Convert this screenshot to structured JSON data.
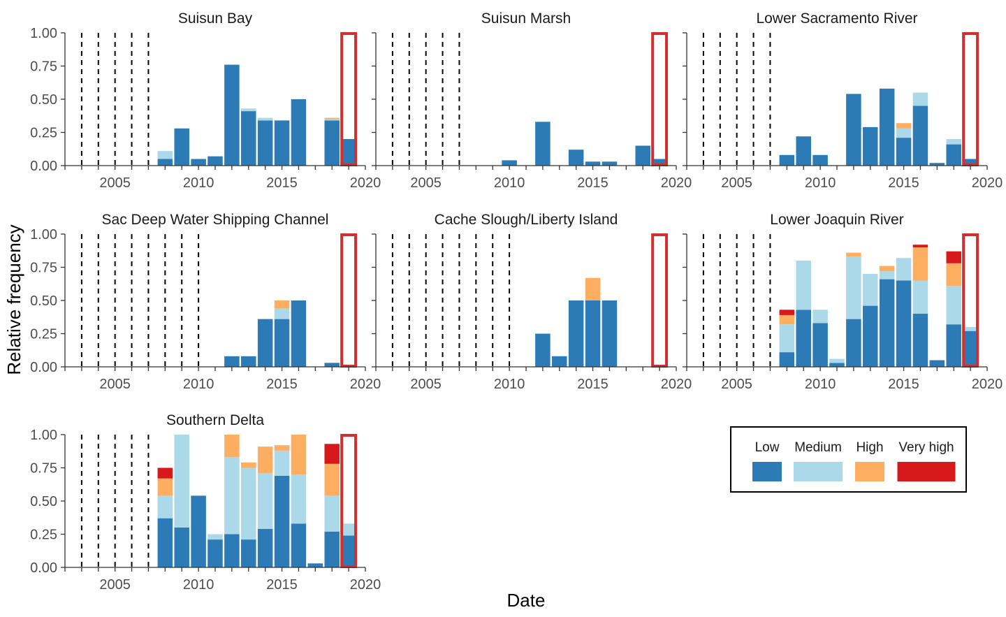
{
  "chart_data": {
    "type": "bar",
    "stacked": true,
    "xlabel": "Date",
    "ylabel": "Relative frequency",
    "xlim": [
      2002,
      2020
    ],
    "ylim": [
      0,
      1
    ],
    "x_ticks": [
      "2005",
      "2010",
      "2015",
      "2020"
    ],
    "y_ticks": [
      "0.00",
      "0.25",
      "0.50",
      "0.75",
      "1.00"
    ],
    "legend": {
      "position": "bottom-right",
      "entries": [
        {
          "name": "Low",
          "color": "#2c7bb6"
        },
        {
          "name": "Medium",
          "color": "#abd9e9"
        },
        {
          "name": "High",
          "color": "#fdae61"
        },
        {
          "name": "Very high",
          "color": "#d7191c"
        }
      ]
    },
    "highlight_year": 2019,
    "highlight_color": "#d32f2f",
    "grid": false,
    "panels": [
      {
        "title": "Suisun Bay",
        "dashed_years": [
          2003,
          2004,
          2005,
          2006,
          2007
        ],
        "bars": [
          {
            "year": 2008,
            "values": [
              0.05,
              0.06,
              0,
              0
            ]
          },
          {
            "year": 2009,
            "values": [
              0.28,
              0,
              0,
              0
            ]
          },
          {
            "year": 2010,
            "values": [
              0.05,
              0,
              0,
              0
            ]
          },
          {
            "year": 2011,
            "values": [
              0.07,
              0,
              0,
              0
            ]
          },
          {
            "year": 2012,
            "values": [
              0.76,
              0,
              0,
              0
            ]
          },
          {
            "year": 2013,
            "values": [
              0.41,
              0.02,
              0,
              0
            ]
          },
          {
            "year": 2014,
            "values": [
              0.34,
              0.02,
              0,
              0
            ]
          },
          {
            "year": 2015,
            "values": [
              0.34,
              0,
              0,
              0
            ]
          },
          {
            "year": 2016,
            "values": [
              0.5,
              0,
              0,
              0
            ]
          },
          {
            "year": 2018,
            "values": [
              0.34,
              0.01,
              0.01,
              0
            ]
          },
          {
            "year": 2019,
            "values": [
              0.2,
              0,
              0,
              0
            ]
          }
        ]
      },
      {
        "title": "Suisun Marsh",
        "dashed_years": [
          2003,
          2004,
          2005,
          2006,
          2007
        ],
        "bars": [
          {
            "year": 2010,
            "values": [
              0.04,
              0,
              0,
              0
            ]
          },
          {
            "year": 2012,
            "values": [
              0.33,
              0,
              0,
              0
            ]
          },
          {
            "year": 2014,
            "values": [
              0.12,
              0,
              0,
              0
            ]
          },
          {
            "year": 2015,
            "values": [
              0.03,
              0,
              0,
              0
            ]
          },
          {
            "year": 2016,
            "values": [
              0.03,
              0,
              0,
              0
            ]
          },
          {
            "year": 2018,
            "values": [
              0.15,
              0,
              0,
              0
            ]
          },
          {
            "year": 2019,
            "values": [
              0.05,
              0,
              0,
              0
            ]
          }
        ]
      },
      {
        "title": "Lower Sacramento River",
        "dashed_years": [
          2003,
          2004,
          2005,
          2006,
          2007
        ],
        "bars": [
          {
            "year": 2008,
            "values": [
              0.08,
              0,
              0,
              0
            ]
          },
          {
            "year": 2009,
            "values": [
              0.22,
              0,
              0,
              0
            ]
          },
          {
            "year": 2010,
            "values": [
              0.08,
              0,
              0,
              0
            ]
          },
          {
            "year": 2012,
            "values": [
              0.54,
              0,
              0,
              0
            ]
          },
          {
            "year": 2013,
            "values": [
              0.29,
              0,
              0,
              0
            ]
          },
          {
            "year": 2014,
            "values": [
              0.58,
              0,
              0,
              0
            ]
          },
          {
            "year": 2015,
            "values": [
              0.21,
              0.07,
              0.04,
              0
            ]
          },
          {
            "year": 2016,
            "values": [
              0.45,
              0.1,
              0,
              0
            ]
          },
          {
            "year": 2017,
            "values": [
              0.02,
              0,
              0,
              0
            ]
          },
          {
            "year": 2018,
            "values": [
              0.16,
              0.04,
              0,
              0
            ]
          },
          {
            "year": 2019,
            "values": [
              0.05,
              0,
              0,
              0
            ]
          }
        ]
      },
      {
        "title": "Sac Deep Water Shipping Channel",
        "dashed_years": [
          2003,
          2004,
          2005,
          2006,
          2007,
          2008,
          2009,
          2010
        ],
        "bars": [
          {
            "year": 2012,
            "values": [
              0.08,
              0,
              0,
              0
            ]
          },
          {
            "year": 2013,
            "values": [
              0.08,
              0,
              0,
              0
            ]
          },
          {
            "year": 2014,
            "values": [
              0.36,
              0,
              0,
              0
            ]
          },
          {
            "year": 2015,
            "values": [
              0.36,
              0.08,
              0.06,
              0
            ]
          },
          {
            "year": 2016,
            "values": [
              0.5,
              0,
              0,
              0
            ]
          },
          {
            "year": 2018,
            "values": [
              0.03,
              0,
              0,
              0
            ]
          }
        ]
      },
      {
        "title": "Cache Slough/Liberty Island",
        "dashed_years": [
          2003,
          2004,
          2005,
          2006,
          2007,
          2008,
          2009,
          2010
        ],
        "bars": [
          {
            "year": 2012,
            "values": [
              0.25,
              0,
              0,
              0
            ]
          },
          {
            "year": 2013,
            "values": [
              0.08,
              0,
              0,
              0
            ]
          },
          {
            "year": 2014,
            "values": [
              0.5,
              0,
              0,
              0
            ]
          },
          {
            "year": 2015,
            "values": [
              0.5,
              0,
              0.17,
              0
            ]
          },
          {
            "year": 2016,
            "values": [
              0.5,
              0,
              0,
              0
            ]
          }
        ]
      },
      {
        "title": "Lower Joaquin River",
        "dashed_years": [
          2003,
          2004,
          2005,
          2006,
          2007
        ],
        "bars": [
          {
            "year": 2008,
            "values": [
              0.11,
              0.21,
              0.07,
              0.04
            ]
          },
          {
            "year": 2009,
            "values": [
              0.43,
              0.37,
              0,
              0
            ]
          },
          {
            "year": 2010,
            "values": [
              0.33,
              0.1,
              0,
              0
            ]
          },
          {
            "year": 2011,
            "values": [
              0.03,
              0.03,
              0,
              0
            ]
          },
          {
            "year": 2012,
            "values": [
              0.36,
              0.47,
              0.03,
              0
            ]
          },
          {
            "year": 2013,
            "values": [
              0.46,
              0.24,
              0,
              0
            ]
          },
          {
            "year": 2014,
            "values": [
              0.66,
              0.06,
              0.04,
              0
            ]
          },
          {
            "year": 2015,
            "values": [
              0.65,
              0.17,
              0,
              0
            ]
          },
          {
            "year": 2016,
            "values": [
              0.4,
              0.25,
              0.25,
              0.02
            ]
          },
          {
            "year": 2017,
            "values": [
              0.05,
              0,
              0,
              0
            ]
          },
          {
            "year": 2018,
            "values": [
              0.32,
              0.29,
              0.17,
              0.09
            ]
          },
          {
            "year": 2019,
            "values": [
              0.27,
              0.03,
              0,
              0
            ]
          }
        ]
      },
      {
        "title": "Southern Delta",
        "dashed_years": [
          2003,
          2004,
          2005,
          2006,
          2007
        ],
        "bars": [
          {
            "year": 2008,
            "values": [
              0.37,
              0.17,
              0.13,
              0.08
            ]
          },
          {
            "year": 2009,
            "values": [
              0.3,
              0.7,
              0,
              0
            ]
          },
          {
            "year": 2010,
            "values": [
              0.54,
              0,
              0,
              0
            ]
          },
          {
            "year": 2011,
            "values": [
              0.21,
              0.04,
              0,
              0
            ]
          },
          {
            "year": 2012,
            "values": [
              0.25,
              0.58,
              0.17,
              0
            ]
          },
          {
            "year": 2013,
            "values": [
              0.21,
              0.54,
              0.04,
              0
            ]
          },
          {
            "year": 2014,
            "values": [
              0.29,
              0.42,
              0.2,
              0
            ]
          },
          {
            "year": 2015,
            "values": [
              0.69,
              0.19,
              0.04,
              0
            ]
          },
          {
            "year": 2016,
            "values": [
              0.33,
              0.37,
              0.3,
              0
            ]
          },
          {
            "year": 2017,
            "values": [
              0.03,
              0,
              0,
              0
            ]
          },
          {
            "year": 2018,
            "values": [
              0.27,
              0.27,
              0.24,
              0.15
            ]
          },
          {
            "year": 2019,
            "values": [
              0.24,
              0.09,
              0,
              0
            ]
          }
        ]
      }
    ]
  }
}
